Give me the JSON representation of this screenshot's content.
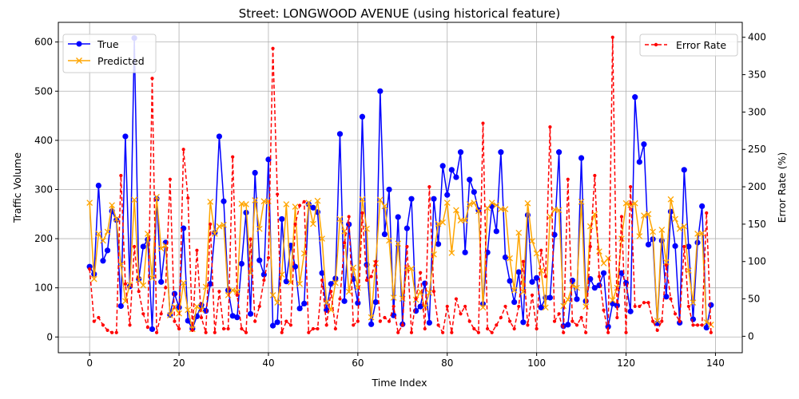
{
  "chart_data": {
    "type": "line",
    "title": "Street: LONGWOOD AVENUE (using historical feature)",
    "xlabel": "Time Index",
    "ylabel_left": "Traffic Volume",
    "ylabel_right": "Error Rate (%)",
    "xlim": [
      -7,
      146
    ],
    "ylim_left": [
      -32,
      640
    ],
    "ylim_right": [
      -22,
      420
    ],
    "x_ticks": [
      "0",
      "20",
      "40",
      "60",
      "80",
      "100",
      "120",
      "140"
    ],
    "y_left_ticks": [
      "0",
      "100",
      "200",
      "300",
      "400",
      "500",
      "600"
    ],
    "y_right_ticks": [
      "0",
      "50",
      "100",
      "150",
      "200",
      "250",
      "300",
      "350",
      "400"
    ],
    "grid": true,
    "legend_left": {
      "position": "top-left",
      "entries": [
        "True",
        "Predicted"
      ]
    },
    "legend_right": {
      "position": "top-right",
      "entries": [
        "Error Rate"
      ]
    },
    "series": [
      {
        "name": "True",
        "axis": "left",
        "color": "#0000ff",
        "marker": "circle",
        "linestyle": "solid",
        "values": [
          143,
          128,
          308,
          155,
          176,
          256,
          238,
          63,
          408,
          103,
          608,
          118,
          184,
          198,
          16,
          281,
          112,
          192,
          45,
          88,
          60,
          221,
          33,
          17,
          42,
          65,
          53,
          108,
          212,
          408,
          276,
          95,
          43,
          40,
          149,
          253,
          47,
          334,
          156,
          127,
          361,
          23,
          30,
          240,
          113,
          186,
          143,
          58,
          68,
          270,
          263,
          254,
          130,
          55,
          108,
          119,
          413,
          73,
          229,
          118,
          69,
          448,
          147,
          26,
          71,
          500,
          209,
          300,
          44,
          244,
          26,
          221,
          281,
          53,
          62,
          109,
          29,
          281,
          189,
          348,
          289,
          340,
          325,
          376,
          172,
          320,
          295,
          258,
          67,
          172,
          266,
          215,
          376,
          162,
          114,
          71,
          132,
          30,
          248,
          112,
          120,
          60,
          80,
          80,
          208,
          376,
          22,
          25,
          115,
          77,
          364,
          73,
          118,
          100,
          105,
          130,
          21,
          68,
          64,
          130,
          110,
          52,
          488,
          356,
          392,
          188,
          199,
          28,
          196,
          82,
          255,
          185,
          29,
          340,
          184,
          36,
          192,
          266,
          19,
          65
        ]
      },
      {
        "name": "Predicted",
        "axis": "left",
        "color": "#ffa500",
        "marker": "x",
        "linestyle": "solid",
        "values": [
          273,
          118,
          210,
          196,
          214,
          268,
          240,
          147,
          73,
          106,
          279,
          116,
          105,
          210,
          120,
          285,
          180,
          186,
          44,
          61,
          48,
          110,
          55,
          16,
          62,
          55,
          102,
          275,
          210,
          225,
          228,
          85,
          95,
          92,
          271,
          270,
          130,
          278,
          220,
          276,
          276,
          85,
          70,
          127,
          270,
          111,
          265,
          108,
          170,
          273,
          230,
          277,
          200,
          70,
          55,
          110,
          240,
          215,
          92,
          141,
          100,
          280,
          220,
          40,
          150,
          279,
          266,
          196,
          80,
          190,
          78,
          140,
          139,
          76,
          92,
          60,
          90,
          168,
          230,
          233,
          273,
          171,
          258,
          237,
          237,
          270,
          273,
          256,
          60,
          262,
          273,
          268,
          260,
          260,
          160,
          95,
          212,
          92,
          272,
          195,
          170,
          135,
          60,
          245,
          259,
          258,
          63,
          76,
          105,
          100,
          275,
          62,
          225,
          250,
          174,
          150,
          160,
          75,
          100,
          200,
          272,
          268,
          272,
          205,
          247,
          250,
          214,
          33,
          218,
          152,
          280,
          240,
          220,
          225,
          135,
          70,
          210,
          211,
          30,
          25
        ]
      },
      {
        "name": "Error Rate",
        "axis": "right",
        "color": "#ff0000",
        "marker": "dot",
        "linestyle": "dashed",
        "values": [
          90,
          20,
          25,
          15,
          8,
          5,
          5,
          215,
          70,
          15,
          120,
          60,
          30,
          12,
          345,
          5,
          30,
          65,
          210,
          20,
          10,
          250,
          185,
          8,
          115,
          25,
          5,
          150,
          5,
          60,
          10,
          10,
          240,
          55,
          10,
          5,
          130,
          20,
          40,
          75,
          105,
          385,
          190,
          5,
          20,
          15,
          150,
          175,
          180,
          5,
          10,
          10,
          75,
          15,
          60,
          10,
          50,
          125,
          160,
          15,
          20,
          165,
          75,
          80,
          100,
          20,
          25,
          20,
          40,
          5,
          15,
          120,
          5,
          50,
          85,
          10,
          200,
          60,
          15,
          5,
          40,
          5,
          50,
          30,
          40,
          20,
          10,
          5,
          285,
          10,
          5,
          15,
          25,
          40,
          20,
          10,
          40,
          100,
          15,
          55,
          10,
          115,
          80,
          280,
          20,
          30,
          5,
          210,
          20,
          15,
          25,
          5,
          120,
          215,
          80,
          35,
          5,
          400,
          25,
          160,
          5,
          200,
          40,
          40,
          45,
          45,
          20,
          8,
          20,
          95,
          50,
          30,
          20,
          120,
          40,
          15,
          15,
          15,
          165,
          5
        ]
      }
    ]
  }
}
